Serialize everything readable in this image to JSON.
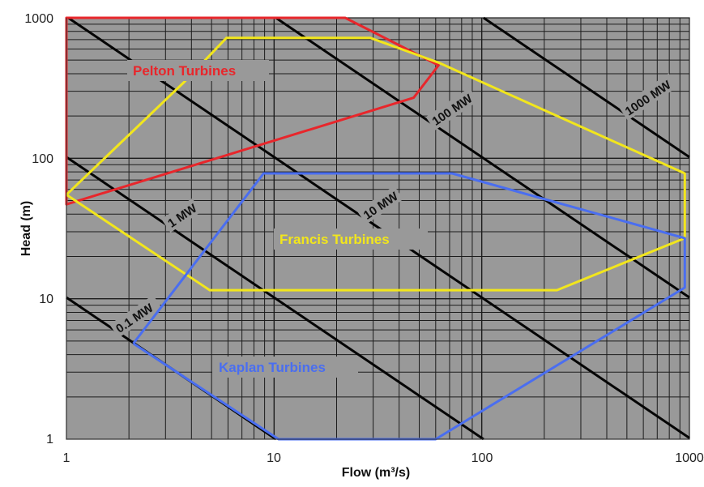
{
  "chart_data": {
    "type": "line",
    "xlabel": "Flow (m³/s)",
    "ylabel": "Head (m)",
    "x_scale": "log",
    "y_scale": "log",
    "xlim": [
      1,
      1000
    ],
    "ylim": [
      1,
      1000
    ],
    "x_ticks": [
      "1",
      "10",
      "100",
      "1000"
    ],
    "y_ticks": [
      "1",
      "10",
      "100",
      "1000"
    ],
    "grid": true,
    "background_color": "#999999",
    "power_lines": [
      {
        "label": "0.1 MW",
        "power_mw": 0.1
      },
      {
        "label": "1 MW",
        "power_mw": 1
      },
      {
        "label": "10 MW",
        "power_mw": 10
      },
      {
        "label": "100 MW",
        "power_mw": 100
      },
      {
        "label": "1000 MW",
        "power_mw": 1000
      }
    ],
    "regions": [
      {
        "name": "Pelton Turbines",
        "color": "#e8262b",
        "points": [
          [
            1,
            1000
          ],
          [
            22,
            1000
          ],
          [
            62,
            460
          ],
          [
            47,
            270
          ],
          [
            1,
            47
          ]
        ]
      },
      {
        "name": "Francis Turbines",
        "color": "#f2e61c",
        "points": [
          [
            1,
            55
          ],
          [
            3.7,
            350
          ],
          [
            5.9,
            720
          ],
          [
            29,
            720
          ],
          [
            62,
            480
          ],
          [
            950,
            78
          ],
          [
            950,
            27
          ],
          [
            230,
            11.5
          ],
          [
            4.9,
            11.5
          ],
          [
            1,
            55
          ]
        ]
      },
      {
        "name": "Kaplan Turbines",
        "color": "#4a6ef0",
        "points": [
          [
            2.1,
            4.8
          ],
          [
            8.9,
            78
          ],
          [
            72,
            78
          ],
          [
            950,
            27
          ],
          [
            950,
            12
          ],
          [
            60,
            1
          ],
          [
            10.5,
            1
          ],
          [
            2.1,
            4.8
          ]
        ]
      }
    ]
  }
}
